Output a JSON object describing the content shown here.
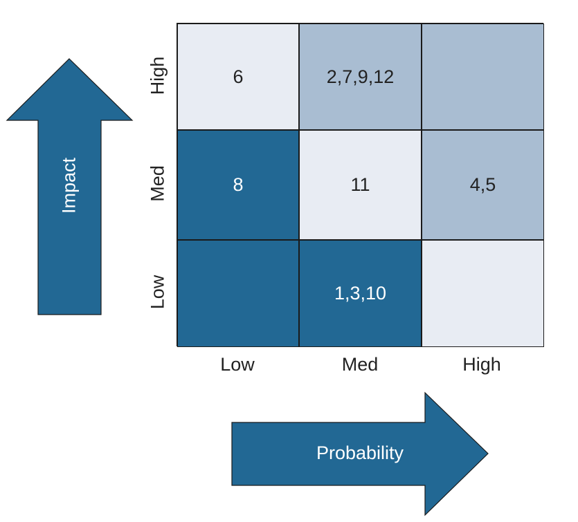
{
  "axes": {
    "impact_label": "Impact",
    "probability_label": "Probability",
    "row_labels": [
      "High",
      "Med",
      "Low"
    ],
    "col_labels": [
      "Low",
      "Med",
      "High"
    ]
  },
  "colors": {
    "dark": "#226894",
    "medium": "#a9bdd2",
    "light": "#e8ecf3",
    "border": "#1a1a1a"
  },
  "matrix": {
    "rows": [
      {
        "impact": "High",
        "cells": [
          {
            "text": "6",
            "tone": "light"
          },
          {
            "text": "2,7,9,12",
            "tone": "medium"
          },
          {
            "text": "",
            "tone": "medium"
          }
        ]
      },
      {
        "impact": "Med",
        "cells": [
          {
            "text": "8",
            "tone": "dark"
          },
          {
            "text": "11",
            "tone": "light"
          },
          {
            "text": "4,5",
            "tone": "medium"
          }
        ]
      },
      {
        "impact": "Low",
        "cells": [
          {
            "text": "",
            "tone": "dark"
          },
          {
            "text": "1,3,10",
            "tone": "dark"
          },
          {
            "text": "",
            "tone": "light"
          }
        ]
      }
    ]
  }
}
